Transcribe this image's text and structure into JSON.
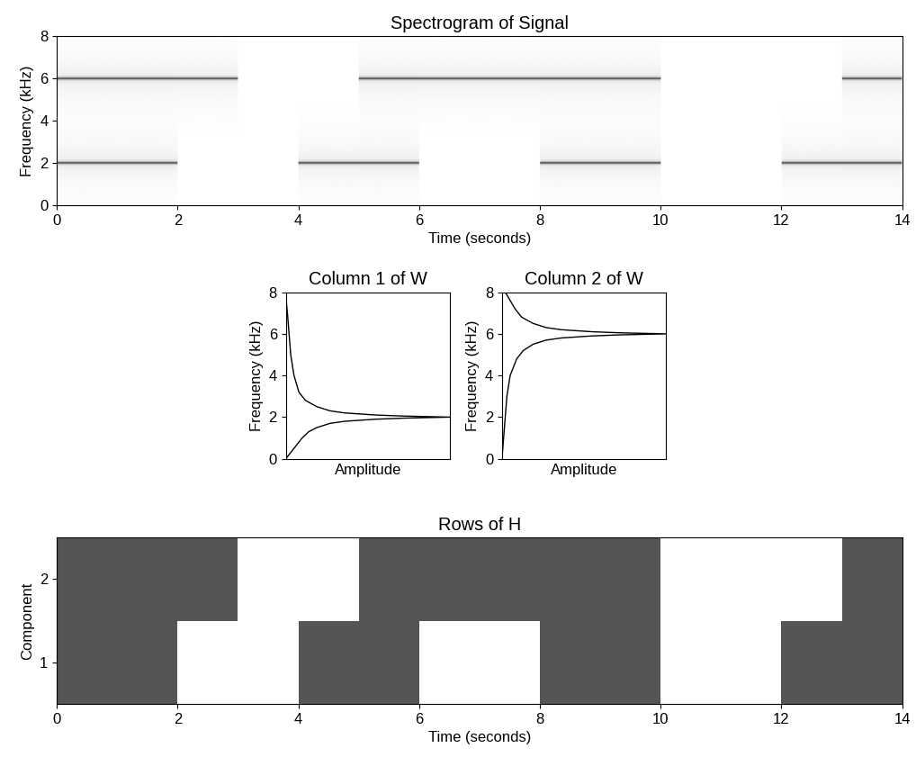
{
  "chart_data": [
    {
      "type": "spectrogram",
      "title": "Spectrogram of Signal",
      "xlabel": "Time (seconds)",
      "ylabel": "Frequency (kHz)",
      "xlim": [
        0,
        14
      ],
      "xticks": [
        0,
        2,
        4,
        6,
        8,
        10,
        12,
        14
      ],
      "ylim": [
        0,
        8
      ],
      "yticks": [
        0,
        2,
        4,
        6,
        8
      ],
      "tones": [
        {
          "frequency": 2,
          "intervals": [
            [
              0,
              2
            ],
            [
              4,
              6
            ],
            [
              8,
              10
            ],
            [
              12,
              14
            ]
          ]
        },
        {
          "frequency": 6,
          "intervals": [
            [
              0,
              3
            ],
            [
              5,
              10
            ],
            [
              13,
              14
            ]
          ]
        }
      ]
    },
    {
      "type": "line",
      "title": "Column 1 of W",
      "xlabel": "Amplitude",
      "ylabel": "Frequency (kHz)",
      "xlim": [
        0,
        1
      ],
      "ylim": [
        0,
        8
      ],
      "yticks": [
        0,
        2,
        4,
        6,
        8
      ],
      "tick_labels": "y",
      "color": "#000000",
      "frequency": [
        0,
        0.3,
        0.7,
        1.0,
        1.3,
        1.5,
        1.7,
        1.8,
        1.9,
        1.95,
        2.0,
        2.05,
        2.1,
        2.2,
        2.3,
        2.5,
        2.8,
        3.2,
        4.0,
        5.0,
        6.0,
        7.0,
        7.8
      ],
      "amplitude": [
        0.0,
        0.03,
        0.07,
        0.1,
        0.14,
        0.19,
        0.27,
        0.36,
        0.55,
        0.72,
        1.0,
        0.72,
        0.55,
        0.36,
        0.27,
        0.19,
        0.12,
        0.08,
        0.05,
        0.03,
        0.02,
        0.01,
        0.0
      ]
    },
    {
      "type": "line",
      "title": "Column 2 of W",
      "xlabel": "Amplitude",
      "ylabel": "Frequency (kHz)",
      "xlim": [
        0,
        1
      ],
      "ylim": [
        0,
        8
      ],
      "yticks": [
        0,
        2,
        4,
        6,
        8
      ],
      "tick_labels": "y",
      "color": "#000000",
      "frequency": [
        0,
        1.0,
        2.0,
        3.0,
        4.0,
        4.8,
        5.2,
        5.5,
        5.7,
        5.8,
        5.9,
        5.95,
        6.0,
        6.05,
        6.1,
        6.2,
        6.3,
        6.5,
        6.8,
        7.2,
        7.6,
        8.0
      ],
      "amplitude": [
        0.0,
        0.01,
        0.02,
        0.03,
        0.05,
        0.09,
        0.13,
        0.19,
        0.27,
        0.36,
        0.55,
        0.72,
        1.0,
        0.72,
        0.55,
        0.36,
        0.27,
        0.19,
        0.12,
        0.08,
        0.05,
        0.02
      ]
    },
    {
      "type": "activation",
      "title": "Rows of H",
      "xlabel": "Time (seconds)",
      "ylabel": "Component",
      "xlim": [
        0,
        14
      ],
      "xticks": [
        0,
        2,
        4,
        6,
        8,
        10,
        12,
        14
      ],
      "ylim": [
        0.5,
        2.5
      ],
      "yticks": [
        1,
        2
      ],
      "color": "#555555",
      "rows": [
        {
          "component": 1,
          "intervals": [
            [
              0,
              2
            ],
            [
              4,
              6
            ],
            [
              8,
              10
            ],
            [
              12,
              14
            ]
          ]
        },
        {
          "component": 2,
          "intervals": [
            [
              0,
              3
            ],
            [
              5,
              10
            ],
            [
              13,
              14
            ]
          ]
        }
      ]
    }
  ]
}
